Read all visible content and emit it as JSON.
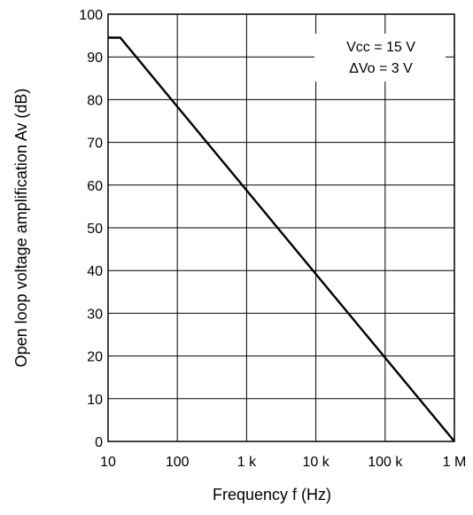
{
  "chart_data": {
    "type": "line",
    "title": "",
    "xlabel": "Frequency f (Hz)",
    "ylabel": "Open loop voltage amplification Av (dB)",
    "x_scale": "log",
    "xlim": [
      10,
      1000000
    ],
    "ylim": [
      0,
      100
    ],
    "x_ticks": [
      {
        "value": 10,
        "label": "10"
      },
      {
        "value": 100,
        "label": "100"
      },
      {
        "value": 1000,
        "label": "1 k"
      },
      {
        "value": 10000,
        "label": "10 k"
      },
      {
        "value": 100000,
        "label": "100 k"
      },
      {
        "value": 1000000,
        "label": "1 M"
      }
    ],
    "y_ticks": [
      0,
      10,
      20,
      30,
      40,
      50,
      60,
      70,
      80,
      90,
      100
    ],
    "grid": true,
    "series": [
      {
        "x": [
          10,
          15,
          1000000
        ],
        "y": [
          94.5,
          94.5,
          0
        ]
      }
    ],
    "annotations": [
      {
        "text": "Vcc = 15 V",
        "position": "top-right"
      },
      {
        "text": "ΔVo = 3 V",
        "position": "top-right"
      }
    ]
  },
  "colors": {
    "line": "#000000",
    "grid": "#000000",
    "background": "#ffffff"
  }
}
